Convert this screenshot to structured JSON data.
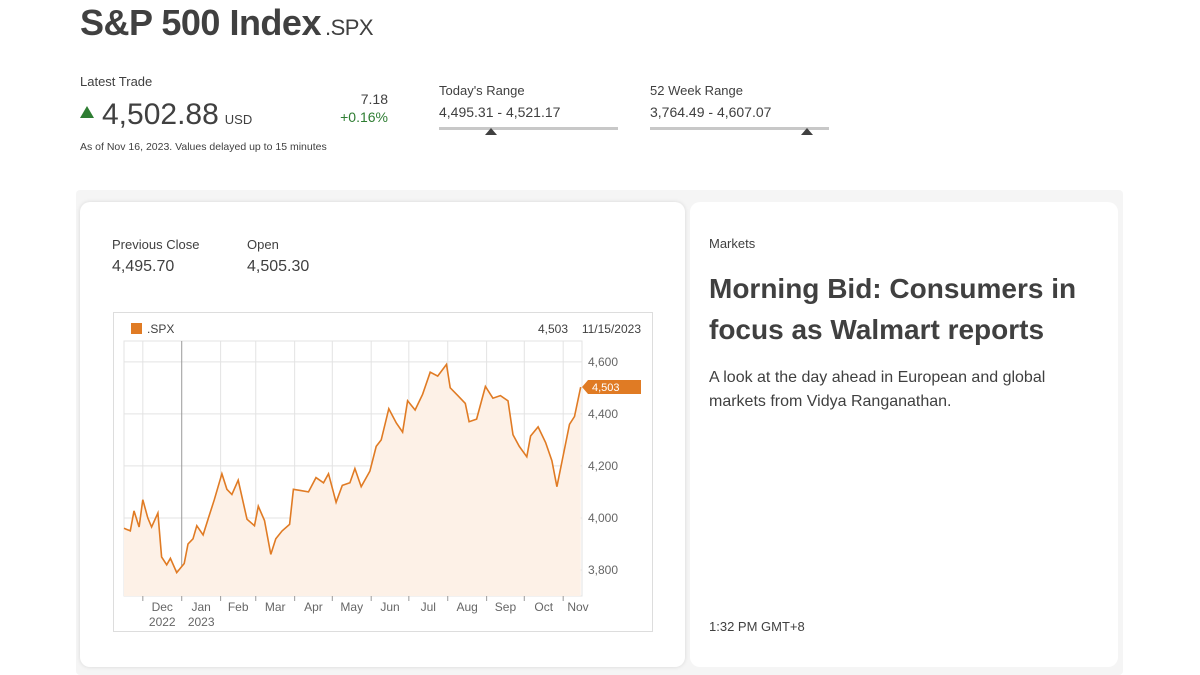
{
  "header": {
    "title": "S&P 500 Index",
    "ticker": ".SPX"
  },
  "quote": {
    "latest_label": "Latest Trade",
    "price": "4,502.88",
    "currency": "USD",
    "change_abs": "7.18",
    "change_pct": "+0.16%",
    "as_of": "As of Nov 16, 2023. Values delayed up to 15 minutes",
    "todays_range_label": "Today's Range",
    "todays_range": "4,495.31 - 4,521.17",
    "week52_range_label": "52 Week Range",
    "week52_range": "3,764.49 - 4,607.07"
  },
  "stats": {
    "prev_close_label": "Previous Close",
    "prev_close": "4,495.70",
    "open_label": "Open",
    "open": "4,505.30"
  },
  "chart_data": {
    "type": "area",
    "legend": ".SPX",
    "legend_placement": "top-left",
    "last_label": "4,503",
    "last_date": "11/15/2023",
    "last_value": 4503,
    "ylim": [
      3700,
      4680
    ],
    "yticks": [
      3800,
      4000,
      4200,
      4400,
      4600
    ],
    "ytick_labels": [
      "3,800",
      "4,000",
      "4,200",
      "4,400",
      "4,600"
    ],
    "xlim": [
      "2022-11-16",
      "2023-11-16"
    ],
    "xticks": [
      {
        "date": "2022-12-01",
        "label": "Dec",
        "sub": "2022"
      },
      {
        "date": "2023-01-01",
        "label": "Jan",
        "sub": "2023"
      },
      {
        "date": "2023-02-01",
        "label": "Feb",
        "sub": ""
      },
      {
        "date": "2023-03-01",
        "label": "Mar",
        "sub": ""
      },
      {
        "date": "2023-04-01",
        "label": "Apr",
        "sub": ""
      },
      {
        "date": "2023-05-01",
        "label": "May",
        "sub": ""
      },
      {
        "date": "2023-06-01",
        "label": "Jun",
        "sub": ""
      },
      {
        "date": "2023-07-01",
        "label": "Jul",
        "sub": ""
      },
      {
        "date": "2023-08-01",
        "label": "Aug",
        "sub": ""
      },
      {
        "date": "2023-09-01",
        "label": "Sep",
        "sub": ""
      },
      {
        "date": "2023-10-01",
        "label": "Oct",
        "sub": ""
      },
      {
        "date": "2023-11-01",
        "label": "Nov",
        "sub": ""
      }
    ],
    "grid": true,
    "series": [
      {
        "x": [
          "2022-11-16",
          "2022-11-21",
          "2022-11-24",
          "2022-11-28",
          "2022-12-01",
          "2022-12-05",
          "2022-12-08",
          "2022-12-13",
          "2022-12-16",
          "2022-12-20",
          "2022-12-23",
          "2022-12-28",
          "2023-01-03",
          "2023-01-06",
          "2023-01-10",
          "2023-01-13",
          "2023-01-18",
          "2023-01-23",
          "2023-01-27",
          "2023-02-02",
          "2023-02-06",
          "2023-02-10",
          "2023-02-15",
          "2023-02-22",
          "2023-02-28",
          "2023-03-03",
          "2023-03-08",
          "2023-03-13",
          "2023-03-17",
          "2023-03-22",
          "2023-03-28",
          "2023-03-31",
          "2023-04-06",
          "2023-04-12",
          "2023-04-18",
          "2023-04-24",
          "2023-04-28",
          "2023-05-04",
          "2023-05-09",
          "2023-05-15",
          "2023-05-19",
          "2023-05-24",
          "2023-05-31",
          "2023-06-05",
          "2023-06-09",
          "2023-06-15",
          "2023-06-21",
          "2023-06-26",
          "2023-06-30",
          "2023-07-06",
          "2023-07-12",
          "2023-07-18",
          "2023-07-24",
          "2023-07-31",
          "2023-08-03",
          "2023-08-09",
          "2023-08-15",
          "2023-08-18",
          "2023-08-24",
          "2023-08-31",
          "2023-09-06",
          "2023-09-12",
          "2023-09-18",
          "2023-09-22",
          "2023-09-27",
          "2023-10-03",
          "2023-10-06",
          "2023-10-12",
          "2023-10-18",
          "2023-10-23",
          "2023-10-27",
          "2023-11-01",
          "2023-11-06",
          "2023-11-10",
          "2023-11-15"
        ],
        "y": [
          3960,
          3950,
          4027,
          3965,
          4070,
          4000,
          3965,
          4019,
          3850,
          3820,
          3845,
          3790,
          3825,
          3900,
          3920,
          3970,
          3935,
          4010,
          4070,
          4170,
          4110,
          4090,
          4145,
          3995,
          3970,
          4045,
          3990,
          3860,
          3920,
          3950,
          3975,
          4110,
          4105,
          4100,
          4155,
          4135,
          4170,
          4060,
          4125,
          4135,
          4190,
          4120,
          4180,
          4275,
          4300,
          4420,
          4365,
          4330,
          4450,
          4415,
          4475,
          4560,
          4545,
          4590,
          4500,
          4470,
          4440,
          4370,
          4380,
          4505,
          4460,
          4470,
          4450,
          4320,
          4275,
          4235,
          4315,
          4350,
          4290,
          4220,
          4120,
          4240,
          4360,
          4390,
          4503
        ]
      }
    ]
  },
  "news": {
    "category": "Markets",
    "headline": "Morning Bid: Consumers in focus as Walmart reports",
    "summary": "A look at the day ahead in European and global markets from Vidya Ranganathan.",
    "time": "1:32 PM GMT+8"
  },
  "colors": {
    "series": "#e07b24",
    "area_fill": "#fdf1e7",
    "up": "#2e7d32",
    "text": "#404040",
    "grid": "#e3e3e3"
  }
}
